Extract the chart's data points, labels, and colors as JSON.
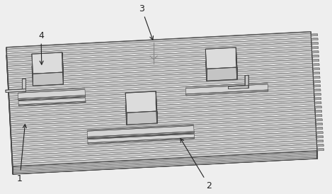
{
  "figure_width": 4.69,
  "figure_height": 2.74,
  "dpi": 100,
  "bg_color": "#eeeeee",
  "line_color": "#444444",
  "top_face_color": "#e8e8e8",
  "front_face_color": "#d0d0d0",
  "right_face_color": "#c0c0c0",
  "side_face_color": "#b8b8b8",
  "rib_light": "#e4e4e4",
  "rib_dark": "#d8d8d8",
  "rib_side": "#c8c8c8",
  "block_top": "#dcdcdc",
  "block_front": "#c4c4c4",
  "block_right": "#b4b4b4",
  "label_color": "#222222",
  "n_ribs": 28,
  "plate_layers": 5
}
